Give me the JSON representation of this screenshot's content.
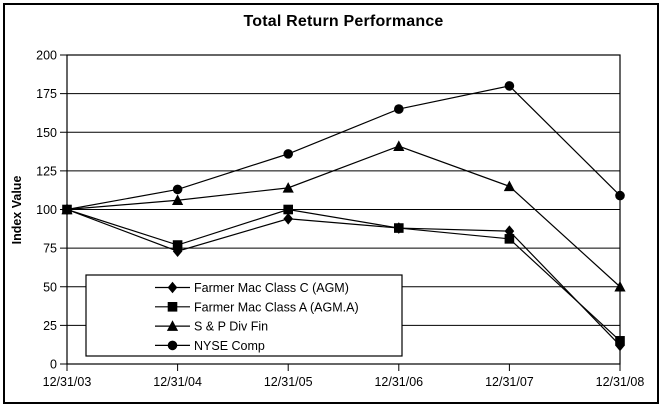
{
  "chart_data": {
    "type": "line",
    "title": "Total Return Performance",
    "ylabel": "Index Value",
    "xlabel": "",
    "ylim": [
      0,
      200
    ],
    "yticks": [
      0,
      25,
      50,
      75,
      100,
      125,
      150,
      175,
      200
    ],
    "grid": "horizontal",
    "legend_position": "inside-bottom-left",
    "line_color": "#000000",
    "background_color": "#ffffff",
    "categories": [
      "12/31/03",
      "12/31/04",
      "12/31/05",
      "12/31/06",
      "12/31/07",
      "12/31/08"
    ],
    "series": [
      {
        "name": "Farmer Mac Class C (AGM)",
        "marker": "diamond",
        "values": [
          100,
          73,
          94,
          88,
          86,
          12
        ]
      },
      {
        "name": "Farmer Mac Class A (AGM.A)",
        "marker": "square",
        "values": [
          100,
          77,
          100,
          88,
          81,
          15
        ]
      },
      {
        "name": "S & P Div Fin",
        "marker": "triangle",
        "values": [
          100,
          106,
          114,
          141,
          115,
          50
        ]
      },
      {
        "name": "NYSE Comp",
        "marker": "circle",
        "values": [
          100,
          113,
          136,
          165,
          180,
          109
        ]
      }
    ]
  }
}
